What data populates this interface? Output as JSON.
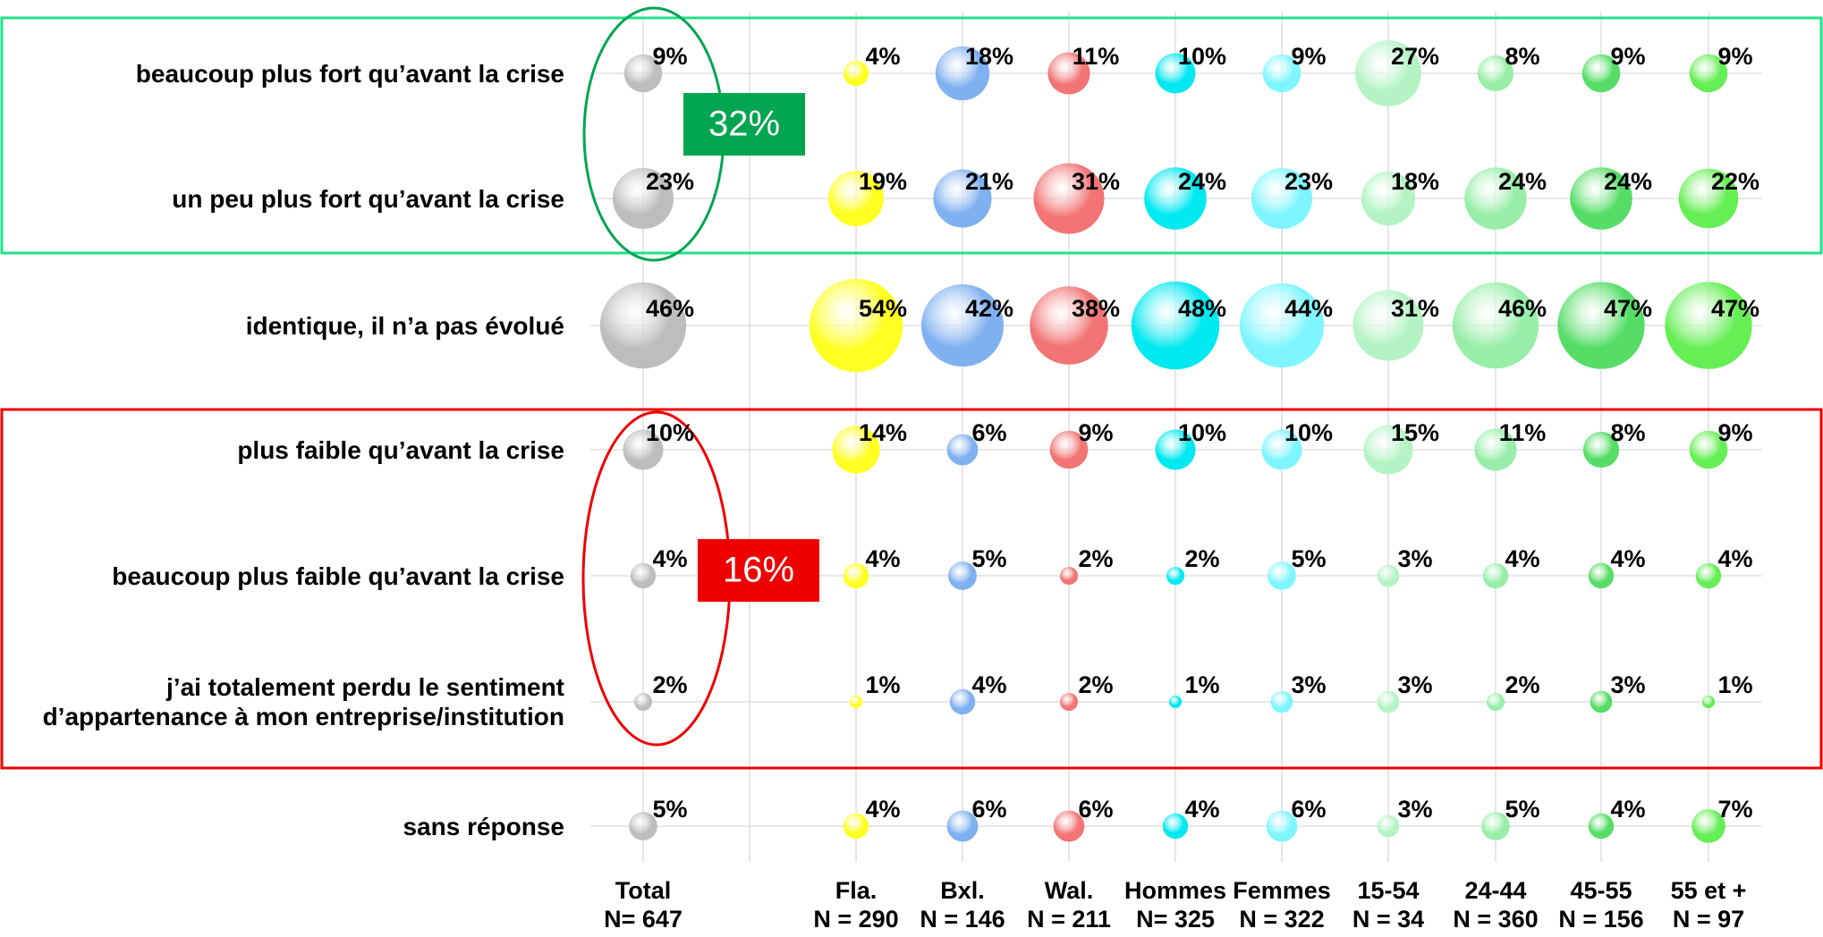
{
  "chart_data": {
    "type": "bubble",
    "categories": [
      "beaucoup plus fort qu’avant la crise",
      "un peu plus fort qu’avant la crise",
      "identique, il n’a pas évolué",
      "plus faible qu’avant la crise",
      "beaucoup plus faible qu’avant la crise",
      "j’ai totalement perdu le sentiment \nd’appartenance à mon entreprise/institution",
      "sans réponse"
    ],
    "series": [
      {
        "name": "Total",
        "n": "N= 647",
        "color": "#bdbdbd",
        "values": [
          9,
          23,
          46,
          10,
          4,
          2,
          5
        ],
        "value_labels": [
          "9%",
          "23%",
          "46%",
          "10%",
          "4%",
          "2%",
          "5%"
        ]
      },
      {
        "name": "Fla.",
        "n": "N = 290",
        "color": "#ffff22",
        "values": [
          4,
          19,
          54,
          14,
          4,
          1,
          4
        ],
        "value_labels": [
          "4%",
          "19%",
          "54%",
          "14%",
          "4%",
          "1%",
          "4%"
        ]
      },
      {
        "name": "Bxl.",
        "n": "N = 146",
        "color": "#7fb0f0",
        "values": [
          18,
          21,
          42,
          6,
          5,
          4,
          6
        ],
        "value_labels": [
          "18%",
          "21%",
          "42%",
          "6%",
          "5%",
          "4%",
          "6%"
        ]
      },
      {
        "name": "Wal.",
        "n": "N = 211",
        "color": "#f27474",
        "values": [
          11,
          31,
          38,
          9,
          2,
          2,
          6
        ],
        "value_labels": [
          "11%",
          "31%",
          "38%",
          "9%",
          "2%",
          "2%",
          "6%"
        ]
      },
      {
        "name": "Hommes",
        "n": "N= 325",
        "color": "#00e8f0",
        "values": [
          10,
          24,
          48,
          10,
          2,
          1,
          4
        ],
        "value_labels": [
          "10%",
          "24%",
          "48%",
          "10%",
          "2%",
          "1%",
          "4%"
        ]
      },
      {
        "name": "Femmes",
        "n": "N = 322",
        "color": "#7ff6ff",
        "values": [
          9,
          23,
          44,
          10,
          5,
          3,
          6
        ],
        "value_labels": [
          "9%",
          "23%",
          "44%",
          "10%",
          "5%",
          "3%",
          "6%"
        ]
      },
      {
        "name": "15-54",
        "n": "N = 34",
        "color": "#b4f4c4",
        "values": [
          27,
          18,
          31,
          15,
          3,
          3,
          3
        ],
        "value_labels": [
          "27%",
          "18%",
          "31%",
          "15%",
          "3%",
          "3%",
          "3%"
        ]
      },
      {
        "name": "24-44",
        "n": "N = 360",
        "color": "#98eea8",
        "values": [
          8,
          24,
          46,
          11,
          4,
          2,
          5
        ],
        "value_labels": [
          "8%",
          "24%",
          "46%",
          "11%",
          "4%",
          "2%",
          "5%"
        ]
      },
      {
        "name": "45-55",
        "n": "N = 156",
        "color": "#55dd66",
        "values": [
          9,
          24,
          47,
          8,
          4,
          3,
          4
        ],
        "value_labels": [
          "9%",
          "24%",
          "47%",
          "8%",
          "4%",
          "3%",
          "4%"
        ]
      },
      {
        "name": "55 et +",
        "n": "N = 97",
        "color": "#66ee55",
        "values": [
          9,
          22,
          47,
          9,
          4,
          1,
          7
        ],
        "value_labels": [
          "9%",
          "22%",
          "47%",
          "9%",
          "4%",
          "1%",
          "7%"
        ]
      }
    ],
    "annotations": [
      {
        "text": "32%",
        "color": "#00a550"
      },
      {
        "text": "16%",
        "color": "#ee0000"
      }
    ]
  }
}
